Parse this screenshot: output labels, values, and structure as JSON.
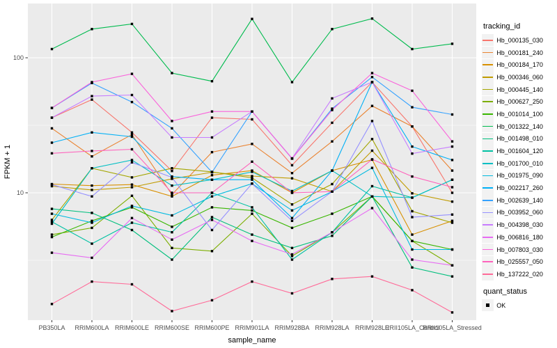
{
  "chart_data": {
    "type": "line",
    "title": "",
    "xlabel": "sample_name",
    "ylabel": "FPKM + 1",
    "y_scale": "log10",
    "y_ticks": [
      100,
      10
    ],
    "y_minor_ticks": [
      31.623,
      3.1623
    ],
    "ylim": [
      1.1,
      250
    ],
    "legend_title": "tracking_id",
    "legend2_title": "quant_status",
    "legend2_items": [
      {
        "label": "OK"
      }
    ],
    "point_shape": "filled-square",
    "point_color": "#000000",
    "panel_bg": "#EBEBEB",
    "grid_color": "#FFFFFF",
    "key_bg": "#F2F2F2",
    "axis_text_color": "#4D4D4D",
    "tick_color": "#333333",
    "categories": [
      "PB350LA",
      "RRIM600LA",
      "RRIM600LE",
      "RRIM600SE",
      "RRIM600PE",
      "RRIM901LA",
      "RRIM928BA",
      "RRIM928LA",
      "RRIM928LE",
      "RRII105LA_Control",
      "RRII105LA_Stressed"
    ],
    "series": [
      {
        "name": "Hb_000135_030",
        "color": "#F8766D",
        "values": [
          36,
          49,
          28,
          14.5,
          36,
          35,
          16,
          33,
          66,
          31,
          10
        ]
      },
      {
        "name": "Hb_000181_240",
        "color": "#EA8331",
        "values": [
          30,
          18.6,
          27,
          9.7,
          20,
          23,
          14,
          24,
          44,
          31,
          14.6
        ]
      },
      {
        "name": "Hb_000184_170",
        "color": "#D89000",
        "values": [
          11.6,
          11.3,
          11.5,
          9.4,
          13.5,
          14.6,
          10,
          14.6,
          17.6,
          4.9,
          6.2
        ]
      },
      {
        "name": "Hb_000346_060",
        "color": "#C09B00",
        "values": [
          11.2,
          10.5,
          11.0,
          12.7,
          14.2,
          13.3,
          12.8,
          10.2,
          20.5,
          9.9,
          8.6
        ]
      },
      {
        "name": "Hb_000445_140",
        "color": "#A3A500",
        "values": [
          6.3,
          15.2,
          13.0,
          15.2,
          14.3,
          12.9,
          8.2,
          11.6,
          25,
          7.3,
          6.0
        ]
      },
      {
        "name": "Hb_000627_250",
        "color": "#7CAE00",
        "values": [
          4.9,
          5.5,
          9.5,
          3.9,
          3.7,
          7.0,
          3.4,
          5.1,
          9.4,
          4.4,
          2.9
        ]
      },
      {
        "name": "Hb_001014_100",
        "color": "#39B600",
        "values": [
          4.7,
          6.2,
          7.8,
          5.6,
          7.8,
          7.4,
          5.5,
          7.0,
          9.4,
          4.4,
          3.8
        ]
      },
      {
        "name": "Hb_001322_140",
        "color": "#00BB4E",
        "values": [
          116,
          163,
          178,
          77,
          67,
          194,
          66,
          163,
          195,
          116,
          127
        ]
      },
      {
        "name": "Hb_001498_010",
        "color": "#00BF7D",
        "values": [
          7.6,
          7.1,
          5.3,
          3.2,
          6.6,
          4.9,
          3.9,
          4.8,
          9.4,
          2.8,
          2.4
        ]
      },
      {
        "name": "Hb_001604_120",
        "color": "#00C1A3",
        "values": [
          6.1,
          4.2,
          6.0,
          5.1,
          10,
          7.8,
          3.2,
          5.1,
          11.2,
          9.2,
          12.5
        ]
      },
      {
        "name": "Hb_001700_010",
        "color": "#00BFC4",
        "values": [
          5.9,
          15.2,
          17.5,
          11.3,
          12.5,
          14.3,
          10.3,
          14.6,
          9.4,
          9.2,
          12.5
        ]
      },
      {
        "name": "Hb_001975_090",
        "color": "#00BAE0",
        "values": [
          7.0,
          6.0,
          8.0,
          6.8,
          9.4,
          11.7,
          7.4,
          10.2,
          15.3,
          3.8,
          3.8
        ]
      },
      {
        "name": "Hb_002217_260",
        "color": "#00B0F6",
        "values": [
          23.5,
          28,
          26,
          13.2,
          12.5,
          12.5,
          6.5,
          14.6,
          66,
          22,
          17.5
        ]
      },
      {
        "name": "Hb_002639_140",
        "color": "#35A2FF",
        "values": [
          42.5,
          65,
          47,
          30,
          14.2,
          40,
          17.9,
          42,
          72,
          43,
          38
        ]
      },
      {
        "name": "Hb_003952_060",
        "color": "#9590FF",
        "values": [
          11.5,
          9.4,
          16.8,
          13.0,
          5.3,
          11.7,
          6.2,
          10.2,
          34,
          6.6,
          6.9
        ]
      },
      {
        "name": "Hb_004398_030",
        "color": "#C77CFF",
        "values": [
          36,
          52,
          53,
          25.7,
          25.7,
          40,
          18,
          50,
          66,
          19.5,
          22
        ]
      },
      {
        "name": "Hb_006816_180",
        "color": "#E76BF3",
        "values": [
          3.6,
          3.3,
          6.5,
          4.5,
          6.3,
          4.4,
          3.5,
          5.1,
          7.7,
          3.2,
          2.9
        ]
      },
      {
        "name": "Hb_007803_030",
        "color": "#FA62DB",
        "values": [
          42.5,
          66,
          76,
          34,
          40,
          40,
          17.9,
          41,
          77,
          57,
          24
        ]
      },
      {
        "name": "Hb_025557_050",
        "color": "#FF62BC",
        "values": [
          19.6,
          20.4,
          21,
          10,
          10,
          17,
          10,
          10.2,
          17.7,
          13.2,
          11
        ]
      },
      {
        "name": "Hb_137222_020",
        "color": "#FF6A98",
        "values": [
          1.5,
          2.2,
          2.1,
          1.33,
          1.6,
          2.2,
          1.8,
          2.3,
          2.4,
          1.9,
          1.3
        ]
      }
    ]
  }
}
